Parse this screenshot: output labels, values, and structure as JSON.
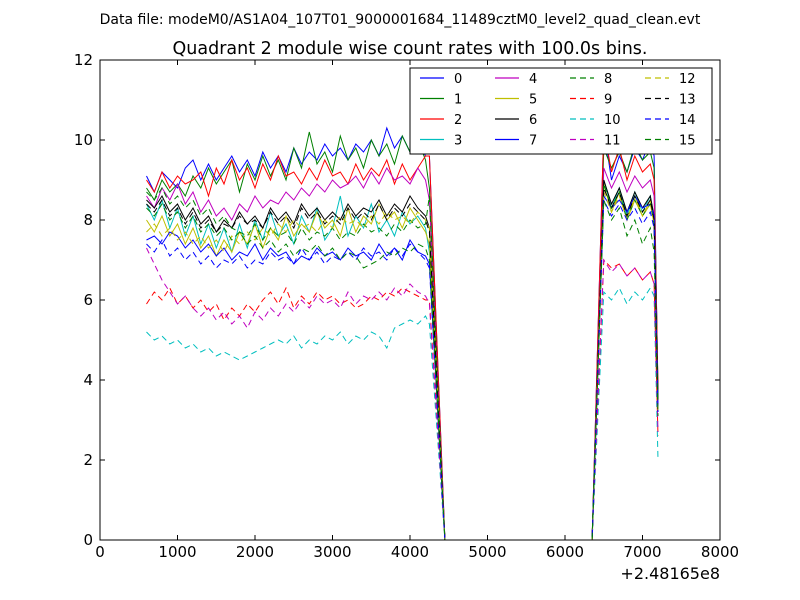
{
  "chart_data": {
    "type": "line",
    "suptitle": "Data file: modeM0/AS1A04_107T01_9000001684_11489cztM0_level2_quad_clean.evt",
    "title": "Quadrant 2 module wise count rates with 100.0s bins.",
    "xlabel": "",
    "ylabel": "",
    "x_offset_label": "+2.48165e8",
    "xlim": [
      0,
      8000
    ],
    "ylim": [
      0,
      12
    ],
    "xticks": [
      "0",
      "1000",
      "2000",
      "3000",
      "4000",
      "5000",
      "6000",
      "7000",
      "8000"
    ],
    "yticks": [
      "0",
      "2",
      "4",
      "6",
      "8",
      "10",
      "12"
    ],
    "grid": false,
    "legend_position": "top-right",
    "x": [
      600,
      700,
      800,
      900,
      1000,
      1100,
      1200,
      1300,
      1400,
      1500,
      1600,
      1700,
      1800,
      1900,
      2000,
      2100,
      2200,
      2300,
      2400,
      2500,
      2600,
      2700,
      2800,
      2900,
      3000,
      3100,
      3200,
      3300,
      3400,
      3500,
      3600,
      3700,
      3800,
      3900,
      4000,
      4100,
      4200,
      4250,
      4450,
      6300,
      6350,
      6500,
      6600,
      6700,
      6800,
      6900,
      7000,
      7100,
      7150,
      7200
    ],
    "series": [
      {
        "name": "0",
        "color": "#0000ff",
        "dash": false,
        "values": [
          9.1,
          8.7,
          9.2,
          9.0,
          8.8,
          9.3,
          9.5,
          9.0,
          9.4,
          9.0,
          9.3,
          9.6,
          9.2,
          9.5,
          9.1,
          9.7,
          9.3,
          9.6,
          9.2,
          9.8,
          9.4,
          9.7,
          9.5,
          9.9,
          9.6,
          9.8,
          9.5,
          9.9,
          9.7,
          10.0,
          9.6,
          10.3,
          9.8,
          10.1,
          9.7,
          10.0,
          9.6,
          9.6,
          0,
          0,
          0,
          10.3,
          9.0,
          9.6,
          9.2,
          9.8,
          9.5,
          10.0,
          9.6,
          3.6
        ]
      },
      {
        "name": "1",
        "color": "#008000",
        "dash": false,
        "values": [
          8.8,
          8.5,
          9.0,
          8.7,
          8.9,
          8.6,
          9.1,
          8.8,
          9.3,
          8.9,
          9.2,
          9.5,
          8.7,
          9.4,
          9.0,
          9.6,
          9.1,
          9.5,
          9.0,
          9.8,
          9.3,
          10.2,
          9.4,
          9.7,
          9.2,
          10.1,
          9.5,
          9.8,
          9.3,
          10.0,
          9.6,
          9.9,
          9.4,
          10.1,
          9.7,
          10.0,
          9.5,
          8.8,
          0,
          0,
          0,
          9.8,
          9.3,
          9.7,
          9.2,
          9.9,
          9.5,
          9.7,
          9.3,
          3.7
        ]
      },
      {
        "name": "2",
        "color": "#ff0000",
        "dash": false,
        "values": [
          9.0,
          8.7,
          9.2,
          8.8,
          9.1,
          8.9,
          9.0,
          9.2,
          8.6,
          9.3,
          8.9,
          9.5,
          9.0,
          9.3,
          8.8,
          9.4,
          9.0,
          9.6,
          9.1,
          9.2,
          8.9,
          9.3,
          9.0,
          9.5,
          9.1,
          9.2,
          8.9,
          9.4,
          9.0,
          9.3,
          9.1,
          9.5,
          8.9,
          9.4,
          9.0,
          9.3,
          9.6,
          9.6,
          0,
          0,
          0,
          10.3,
          9.2,
          9.8,
          9.0,
          9.6,
          9.2,
          9.4,
          9.0,
          3.8
        ]
      },
      {
        "name": "3",
        "color": "#00bfbf",
        "dash": false,
        "values": [
          8.4,
          8.0,
          8.5,
          7.8,
          8.3,
          7.6,
          8.1,
          7.4,
          7.9,
          7.3,
          7.8,
          7.2,
          7.9,
          7.3,
          8.0,
          7.5,
          8.2,
          7.6,
          7.9,
          7.4,
          8.1,
          7.7,
          8.3,
          7.5,
          7.8,
          8.6,
          7.6,
          8.1,
          7.8,
          8.4,
          7.7,
          8.0,
          7.6,
          8.2,
          7.9,
          8.1,
          7.8,
          7.2,
          0,
          0,
          0,
          9.0,
          8.3,
          8.8,
          8.1,
          8.7,
          8.2,
          8.6,
          8.0,
          3.2
        ]
      },
      {
        "name": "4",
        "color": "#bf00bf",
        "dash": false,
        "values": [
          8.6,
          8.3,
          8.8,
          8.5,
          8.9,
          8.4,
          8.7,
          8.2,
          8.5,
          8.1,
          8.3,
          8.0,
          8.4,
          8.2,
          8.6,
          8.3,
          8.5,
          8.4,
          8.7,
          8.5,
          8.8,
          8.6,
          8.9,
          8.7,
          9.0,
          8.8,
          8.9,
          9.1,
          8.8,
          9.2,
          8.9,
          9.3,
          9.0,
          9.1,
          8.9,
          9.3,
          9.0,
          8.5,
          0,
          0,
          0,
          9.3,
          8.8,
          9.2,
          8.7,
          9.1,
          8.8,
          9.0,
          8.6,
          3.4
        ]
      },
      {
        "name": "5",
        "color": "#bfbf00",
        "dash": false,
        "values": [
          8.0,
          7.7,
          8.1,
          7.6,
          7.9,
          7.4,
          7.8,
          7.3,
          7.6,
          7.1,
          7.5,
          7.2,
          7.7,
          7.4,
          7.9,
          7.3,
          7.8,
          7.5,
          8.1,
          7.6,
          7.9,
          7.7,
          8.2,
          7.8,
          8.0,
          7.6,
          8.3,
          7.7,
          8.1,
          7.9,
          8.4,
          8.0,
          8.2,
          7.8,
          8.3,
          8.0,
          7.7,
          7.4,
          0,
          0,
          0,
          8.9,
          8.2,
          8.7,
          8.0,
          8.6,
          8.1,
          8.5,
          7.9,
          3.3
        ]
      },
      {
        "name": "6",
        "color": "#000000",
        "dash": false,
        "values": [
          8.5,
          8.3,
          8.6,
          8.2,
          8.4,
          8.0,
          8.3,
          7.9,
          8.1,
          7.7,
          8.0,
          7.8,
          8.2,
          7.9,
          8.1,
          7.8,
          8.3,
          8.0,
          8.2,
          7.9,
          8.4,
          8.1,
          8.3,
          8.0,
          8.2,
          8.0,
          8.4,
          8.1,
          8.3,
          8.2,
          8.5,
          8.1,
          8.4,
          8.2,
          8.6,
          8.3,
          8.1,
          7.8,
          0,
          0,
          0,
          9.0,
          8.4,
          8.8,
          8.2,
          8.7,
          8.3,
          8.6,
          8.1,
          3.5
        ]
      },
      {
        "name": "7",
        "color": "#0000ff",
        "dash": false,
        "values": [
          7.5,
          7.6,
          7.4,
          7.7,
          7.6,
          7.3,
          7.5,
          7.2,
          7.4,
          7.1,
          7.3,
          7.0,
          7.2,
          7.1,
          7.4,
          7.0,
          7.3,
          7.1,
          7.2,
          6.9,
          7.1,
          7.0,
          7.3,
          7.1,
          7.2,
          7.0,
          7.3,
          7.1,
          7.2,
          7.0,
          7.4,
          7.1,
          7.3,
          7.0,
          7.5,
          7.2,
          7.1,
          6.9,
          0,
          0,
          0,
          8.6,
          8.3,
          8.5,
          8.2,
          8.6,
          8.3,
          8.4,
          8.1,
          3.3
        ]
      },
      {
        "name": "8",
        "color": "#008000",
        "dash": true,
        "values": [
          8.7,
          8.5,
          8.8,
          8.4,
          8.6,
          8.3,
          8.5,
          8.1,
          8.3,
          7.9,
          8.1,
          7.8,
          7.7,
          7.6,
          7.9,
          7.5,
          7.8,
          7.6,
          7.7,
          7.4,
          7.8,
          7.5,
          7.7,
          7.6,
          7.8,
          7.5,
          7.7,
          7.6,
          7.9,
          7.7,
          7.8,
          7.6,
          7.9,
          7.7,
          8.0,
          7.8,
          7.9,
          8.6,
          0,
          0,
          0,
          8.9,
          8.3,
          8.7,
          8.0,
          8.5,
          8.1,
          8.4,
          7.9,
          3.5
        ]
      },
      {
        "name": "9",
        "color": "#ff0000",
        "dash": true,
        "values": [
          5.9,
          6.2,
          6.0,
          6.3,
          5.9,
          6.1,
          5.8,
          6.0,
          5.7,
          5.9,
          5.5,
          5.8,
          5.6,
          5.9,
          5.7,
          6.0,
          6.2,
          5.9,
          6.3,
          5.8,
          6.1,
          5.9,
          6.2,
          6.0,
          6.1,
          5.9,
          6.0,
          5.8,
          5.9,
          6.1,
          6.0,
          6.2,
          6.1,
          6.3,
          6.2,
          6.1,
          6.0,
          6.0,
          0,
          0,
          0,
          7.0,
          6.8,
          6.9,
          6.6,
          6.8,
          6.5,
          6.7,
          6.4,
          2.6
        ]
      },
      {
        "name": "10",
        "color": "#00bfbf",
        "dash": true,
        "values": [
          5.2,
          5.0,
          5.1,
          4.9,
          5.0,
          4.8,
          4.9,
          4.7,
          4.8,
          4.6,
          4.7,
          4.6,
          4.5,
          4.6,
          4.7,
          4.8,
          4.9,
          5.0,
          4.9,
          5.1,
          4.8,
          5.0,
          4.9,
          5.1,
          5.0,
          5.2,
          4.9,
          5.1,
          5.0,
          5.2,
          5.1,
          4.8,
          5.3,
          5.4,
          5.5,
          5.4,
          5.6,
          5.4,
          0,
          0,
          0,
          6.2,
          6.0,
          6.3,
          5.9,
          6.2,
          6.0,
          6.3,
          6.1,
          2.0
        ]
      },
      {
        "name": "11",
        "color": "#bf00bf",
        "dash": true,
        "values": [
          7.3,
          6.9,
          6.5,
          6.2,
          5.9,
          6.1,
          5.8,
          5.6,
          5.8,
          5.5,
          5.7,
          5.4,
          5.6,
          5.3,
          5.7,
          5.5,
          5.8,
          5.6,
          5.9,
          5.7,
          6.0,
          5.8,
          6.1,
          5.9,
          6.0,
          5.8,
          6.2,
          5.9,
          6.1,
          6.0,
          6.2,
          6.0,
          6.3,
          6.1,
          6.4,
          6.2,
          6.1,
          5.9,
          0,
          0,
          0,
          7.0,
          6.7,
          6.9,
          6.6,
          6.8,
          6.5,
          6.7,
          6.4,
          2.7
        ]
      },
      {
        "name": "12",
        "color": "#bfbf00",
        "dash": true,
        "values": [
          7.7,
          7.9,
          7.6,
          7.8,
          7.5,
          7.7,
          7.4,
          7.6,
          7.3,
          7.5,
          7.2,
          7.6,
          7.4,
          7.7,
          7.5,
          7.8,
          7.6,
          7.9,
          7.7,
          8.0,
          7.8,
          7.9,
          7.7,
          8.0,
          7.8,
          8.1,
          7.9,
          8.0,
          7.8,
          8.1,
          7.9,
          8.2,
          8.0,
          8.1,
          7.9,
          8.2,
          8.0,
          7.8,
          0,
          0,
          0,
          8.7,
          8.2,
          8.6,
          8.0,
          8.5,
          8.1,
          8.4,
          7.9,
          3.2
        ]
      },
      {
        "name": "13",
        "color": "#000000",
        "dash": true,
        "values": [
          8.4,
          8.2,
          8.5,
          8.1,
          8.3,
          7.9,
          8.2,
          7.8,
          8.0,
          7.7,
          7.9,
          7.8,
          8.1,
          7.9,
          8.0,
          7.8,
          8.2,
          7.9,
          8.1,
          7.8,
          8.3,
          8.0,
          8.2,
          7.9,
          8.1,
          7.9,
          8.3,
          8.0,
          8.2,
          8.0,
          8.4,
          8.0,
          8.3,
          8.1,
          8.4,
          8.2,
          8.0,
          7.7,
          0,
          0,
          0,
          8.8,
          8.3,
          8.7,
          8.1,
          8.6,
          8.2,
          8.5,
          8.0,
          3.4
        ]
      },
      {
        "name": "14",
        "color": "#0000ff",
        "dash": true,
        "values": [
          7.4,
          7.2,
          7.5,
          7.1,
          7.3,
          7.0,
          7.2,
          6.9,
          7.1,
          6.8,
          7.0,
          6.9,
          7.1,
          6.8,
          7.0,
          6.9,
          7.2,
          7.0,
          7.1,
          6.9,
          7.3,
          7.0,
          7.2,
          6.9,
          7.1,
          7.0,
          7.2,
          7.0,
          7.3,
          7.1,
          7.2,
          7.0,
          7.3,
          7.1,
          7.4,
          7.2,
          7.0,
          6.8,
          0,
          0,
          0,
          8.5,
          8.1,
          8.4,
          8.0,
          8.3,
          7.9,
          8.2,
          7.8,
          3.2
        ]
      },
      {
        "name": "15",
        "color": "#008000",
        "dash": true,
        "values": [
          8.3,
          8.1,
          8.4,
          8.0,
          8.2,
          7.8,
          8.1,
          7.7,
          7.9,
          7.6,
          7.8,
          7.5,
          7.7,
          7.4,
          7.6,
          7.3,
          7.5,
          7.2,
          7.4,
          7.1,
          7.3,
          7.2,
          7.4,
          7.1,
          7.3,
          7.0,
          7.2,
          7.1,
          6.8,
          6.9,
          7.0,
          7.2,
          7.1,
          7.3,
          7.2,
          7.4,
          7.3,
          7.0,
          0,
          0,
          0,
          8.5,
          8.0,
          8.3,
          7.6,
          8.0,
          7.4,
          7.8,
          7.2,
          3.1
        ]
      }
    ]
  }
}
